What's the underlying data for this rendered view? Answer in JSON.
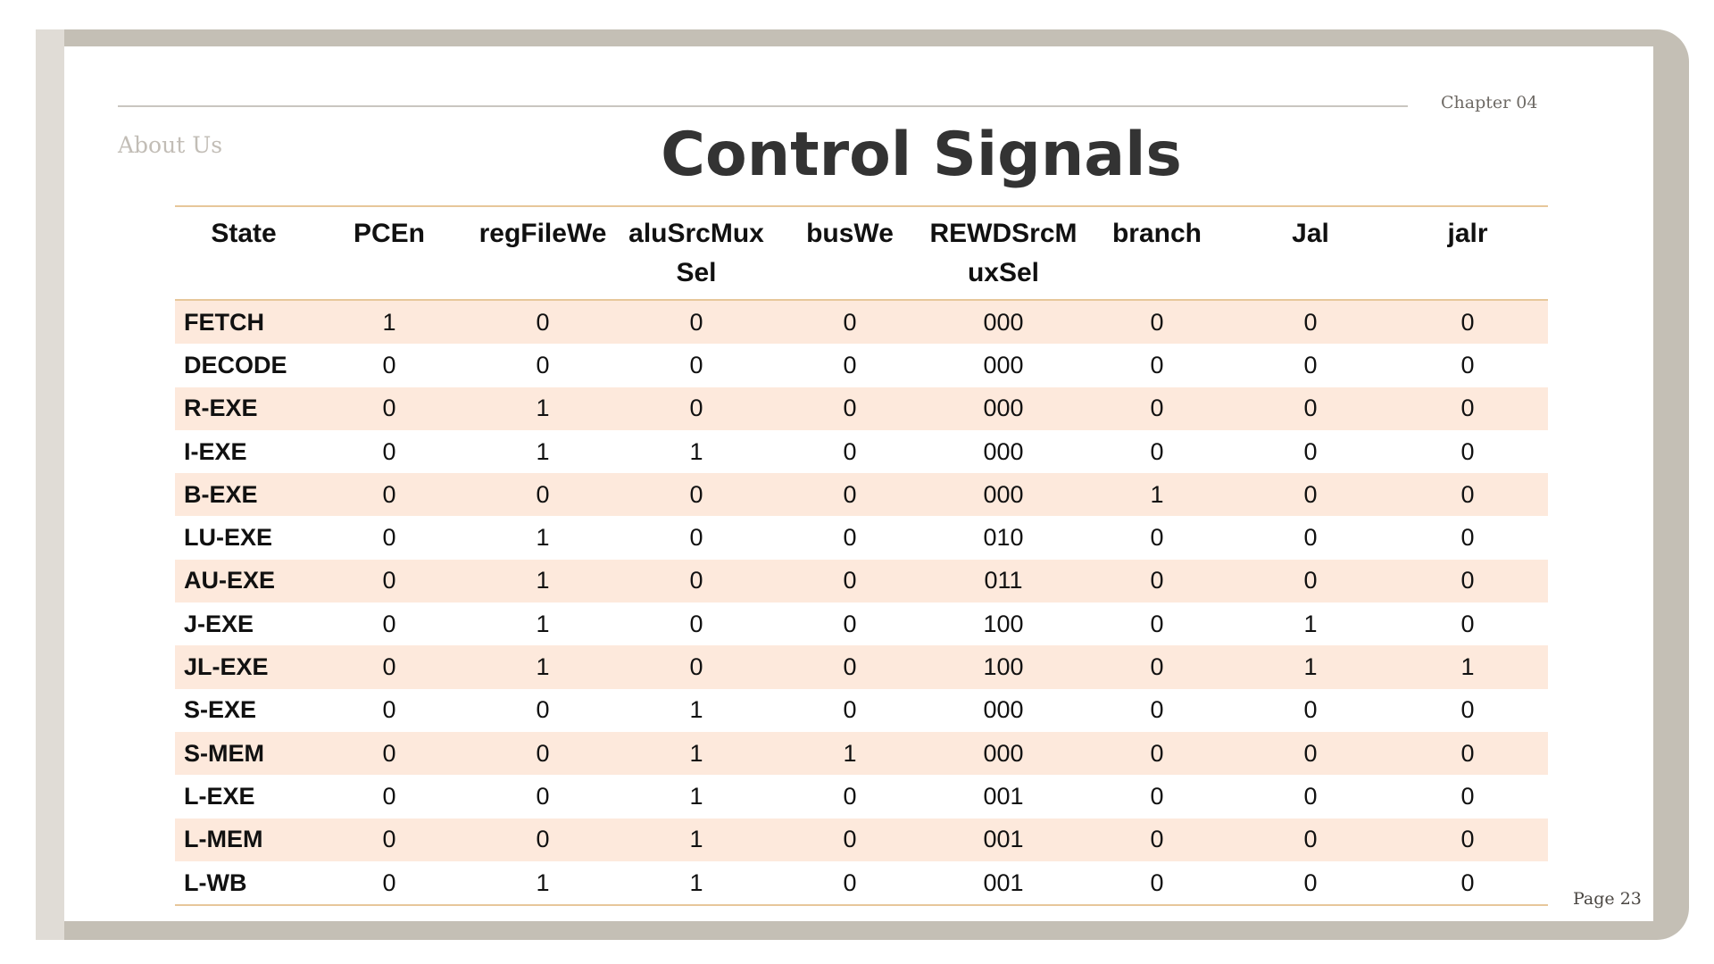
{
  "header": {
    "chapter": "Chapter 04",
    "section": "About Us",
    "title": "Control Signals"
  },
  "footer": {
    "page": "Page 23"
  },
  "table": {
    "columns": [
      "State",
      "PCEn",
      "regFileWe",
      "aluSrcMuxSel",
      "busWe",
      "REWDSrcMuxSel",
      "branch",
      "Jal",
      "jalr"
    ],
    "rows": [
      [
        "FETCH",
        "1",
        "0",
        "0",
        "0",
        "000",
        "0",
        "0",
        "0"
      ],
      [
        "DECODE",
        "0",
        "0",
        "0",
        "0",
        "000",
        "0",
        "0",
        "0"
      ],
      [
        "R-EXE",
        "0",
        "1",
        "0",
        "0",
        "000",
        "0",
        "0",
        "0"
      ],
      [
        "I-EXE",
        "0",
        "1",
        "1",
        "0",
        "000",
        "0",
        "0",
        "0"
      ],
      [
        "B-EXE",
        "0",
        "0",
        "0",
        "0",
        "000",
        "1",
        "0",
        "0"
      ],
      [
        "LU-EXE",
        "0",
        "1",
        "0",
        "0",
        "010",
        "0",
        "0",
        "0"
      ],
      [
        "AU-EXE",
        "0",
        "1",
        "0",
        "0",
        "011",
        "0",
        "0",
        "0"
      ],
      [
        "J-EXE",
        "0",
        "1",
        "0",
        "0",
        "100",
        "0",
        "1",
        "0"
      ],
      [
        "JL-EXE",
        "0",
        "1",
        "0",
        "0",
        "100",
        "0",
        "1",
        "1"
      ],
      [
        "S-EXE",
        "0",
        "0",
        "1",
        "0",
        "000",
        "0",
        "0",
        "0"
      ],
      [
        "S-MEM",
        "0",
        "0",
        "1",
        "1",
        "000",
        "0",
        "0",
        "0"
      ],
      [
        "L-EXE",
        "0",
        "0",
        "1",
        "0",
        "001",
        "0",
        "0",
        "0"
      ],
      [
        "L-MEM",
        "0",
        "0",
        "1",
        "0",
        "001",
        "0",
        "0",
        "0"
      ],
      [
        "L-WB",
        "0",
        "1",
        "1",
        "0",
        "001",
        "0",
        "0",
        "0"
      ]
    ]
  },
  "colors": {
    "frame": "#c4bfb5",
    "row_stripe": "#fde9dc",
    "rule": "#e7c79a",
    "title": "#333333"
  }
}
